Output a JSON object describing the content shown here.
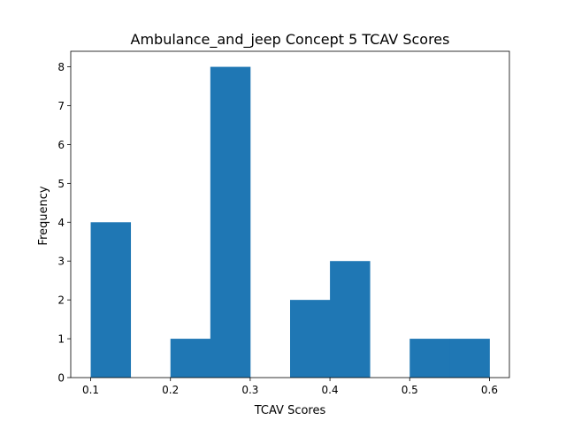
{
  "chart_data": {
    "type": "bar",
    "title": "Ambulance_and_jeep Concept 5 TCAV Scores",
    "xlabel": "TCAV Scores",
    "ylabel": "Frequency",
    "xlim": [
      0.075,
      0.625
    ],
    "ylim": [
      0,
      8.4
    ],
    "xticks": [
      "0.1",
      "0.2",
      "0.3",
      "0.4",
      "0.5",
      "0.6"
    ],
    "xtick_values": [
      0.1,
      0.2,
      0.3,
      0.4,
      0.5,
      0.6
    ],
    "yticks": [
      "0",
      "1",
      "2",
      "3",
      "4",
      "5",
      "6",
      "7",
      "8"
    ],
    "ytick_values": [
      0,
      1,
      2,
      3,
      4,
      5,
      6,
      7,
      8
    ],
    "bins": [
      {
        "x0": 0.1,
        "x1": 0.15,
        "count": 4
      },
      {
        "x0": 0.15,
        "x1": 0.2,
        "count": 0
      },
      {
        "x0": 0.2,
        "x1": 0.25,
        "count": 1
      },
      {
        "x0": 0.25,
        "x1": 0.3,
        "count": 8
      },
      {
        "x0": 0.3,
        "x1": 0.35,
        "count": 0
      },
      {
        "x0": 0.35,
        "x1": 0.4,
        "count": 2
      },
      {
        "x0": 0.4,
        "x1": 0.45,
        "count": 3
      },
      {
        "x0": 0.45,
        "x1": 0.5,
        "count": 0
      },
      {
        "x0": 0.5,
        "x1": 0.55,
        "count": 1
      },
      {
        "x0": 0.55,
        "x1": 0.6,
        "count": 1
      }
    ],
    "bar_color": "#1f77b4",
    "grid": false,
    "legend": "none"
  }
}
